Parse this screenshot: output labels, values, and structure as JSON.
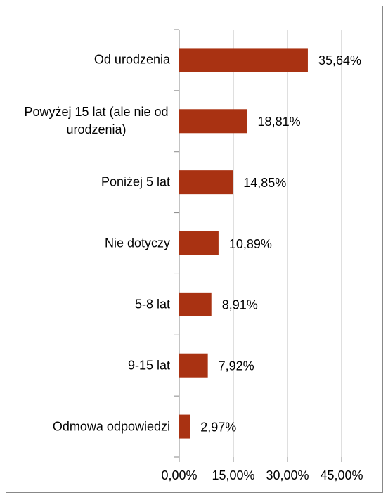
{
  "chart_data": {
    "type": "bar",
    "orientation": "horizontal",
    "categories": [
      "Od urodzenia",
      "Powyżej 15 lat (ale nie od urodzenia)",
      "Poniżej 5 lat",
      "Nie dotyczy",
      "5-8 lat",
      "9-15 lat",
      "Odmowa odpowiedzi"
    ],
    "values": [
      35.64,
      18.81,
      14.85,
      10.89,
      8.91,
      7.92,
      2.97
    ],
    "value_labels": [
      "35,64%",
      "18,81%",
      "14,85%",
      "10,89%",
      "8,91%",
      "7,92%",
      "2,97%"
    ],
    "color": "#a93212",
    "xlim": [
      0,
      45
    ],
    "xticks": [
      {
        "value": 0,
        "label": "0,00%"
      },
      {
        "value": 15,
        "label": "15,00%"
      },
      {
        "value": 30,
        "label": "30,00%"
      },
      {
        "value": 45,
        "label": "45,00%"
      }
    ],
    "grid": true
  }
}
